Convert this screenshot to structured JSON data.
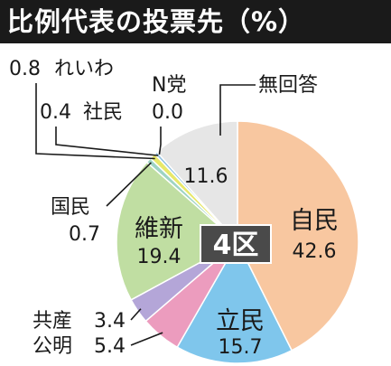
{
  "chart_data": {
    "type": "pie",
    "title": "比例代表の投票先（%）",
    "center_label": "4区",
    "colors": {
      "自民": "#f8c7a0",
      "立民": "#7fc6ec",
      "公明": "#ec9cbe",
      "共産": "#b4a6d8",
      "維新": "#c0dea2",
      "国民": "#9ed4c4",
      "れいわ": "#e8e86a",
      "社民": "#8ec0e0",
      "N党": "#d0d0d0",
      "無回答": "#e6e6e6"
    },
    "slices": [
      {
        "label": "自民",
        "value": 42.6,
        "value_text": "42.6"
      },
      {
        "label": "立民",
        "value": 15.7,
        "value_text": "15.7"
      },
      {
        "label": "公明",
        "value": 5.4,
        "value_text": "5.4"
      },
      {
        "label": "共産",
        "value": 3.4,
        "value_text": "3.4"
      },
      {
        "label": "維新",
        "value": 19.4,
        "value_text": "19.4"
      },
      {
        "label": "国民",
        "value": 0.7,
        "value_text": "0.7"
      },
      {
        "label": "れいわ",
        "value": 0.8,
        "value_text": "0.8"
      },
      {
        "label": "社民",
        "value": 0.4,
        "value_text": "0.4"
      },
      {
        "label": "N党",
        "value": 0.0,
        "value_text": "0.0"
      },
      {
        "label": "無回答",
        "value": 11.6,
        "value_text": "11.6"
      }
    ]
  }
}
